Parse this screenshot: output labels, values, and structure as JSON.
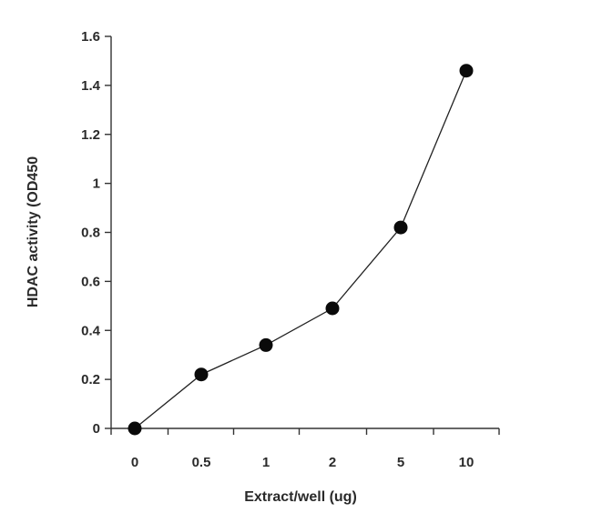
{
  "chart_data": {
    "type": "line",
    "categories": [
      "0",
      "0.5",
      "1",
      "2",
      "5",
      "10"
    ],
    "values": [
      0.0,
      0.22,
      0.34,
      0.49,
      0.82,
      1.46
    ],
    "xlabel": "Extract/well (ug)",
    "ylabel": "HDAC activity (OD450",
    "ylim": [
      0,
      1.6
    ],
    "yticks": [
      "0",
      "0.2",
      "0.4",
      "0.6",
      "0.8",
      "1",
      "1.2",
      "1.4",
      "1.6"
    ],
    "ytick_values": [
      0,
      0.2,
      0.4,
      0.6,
      0.8,
      1.0,
      1.2,
      1.4,
      1.6
    ],
    "grid": false,
    "legend": "none",
    "line_color": "#222222",
    "marker_color": "#0a0a0a"
  }
}
